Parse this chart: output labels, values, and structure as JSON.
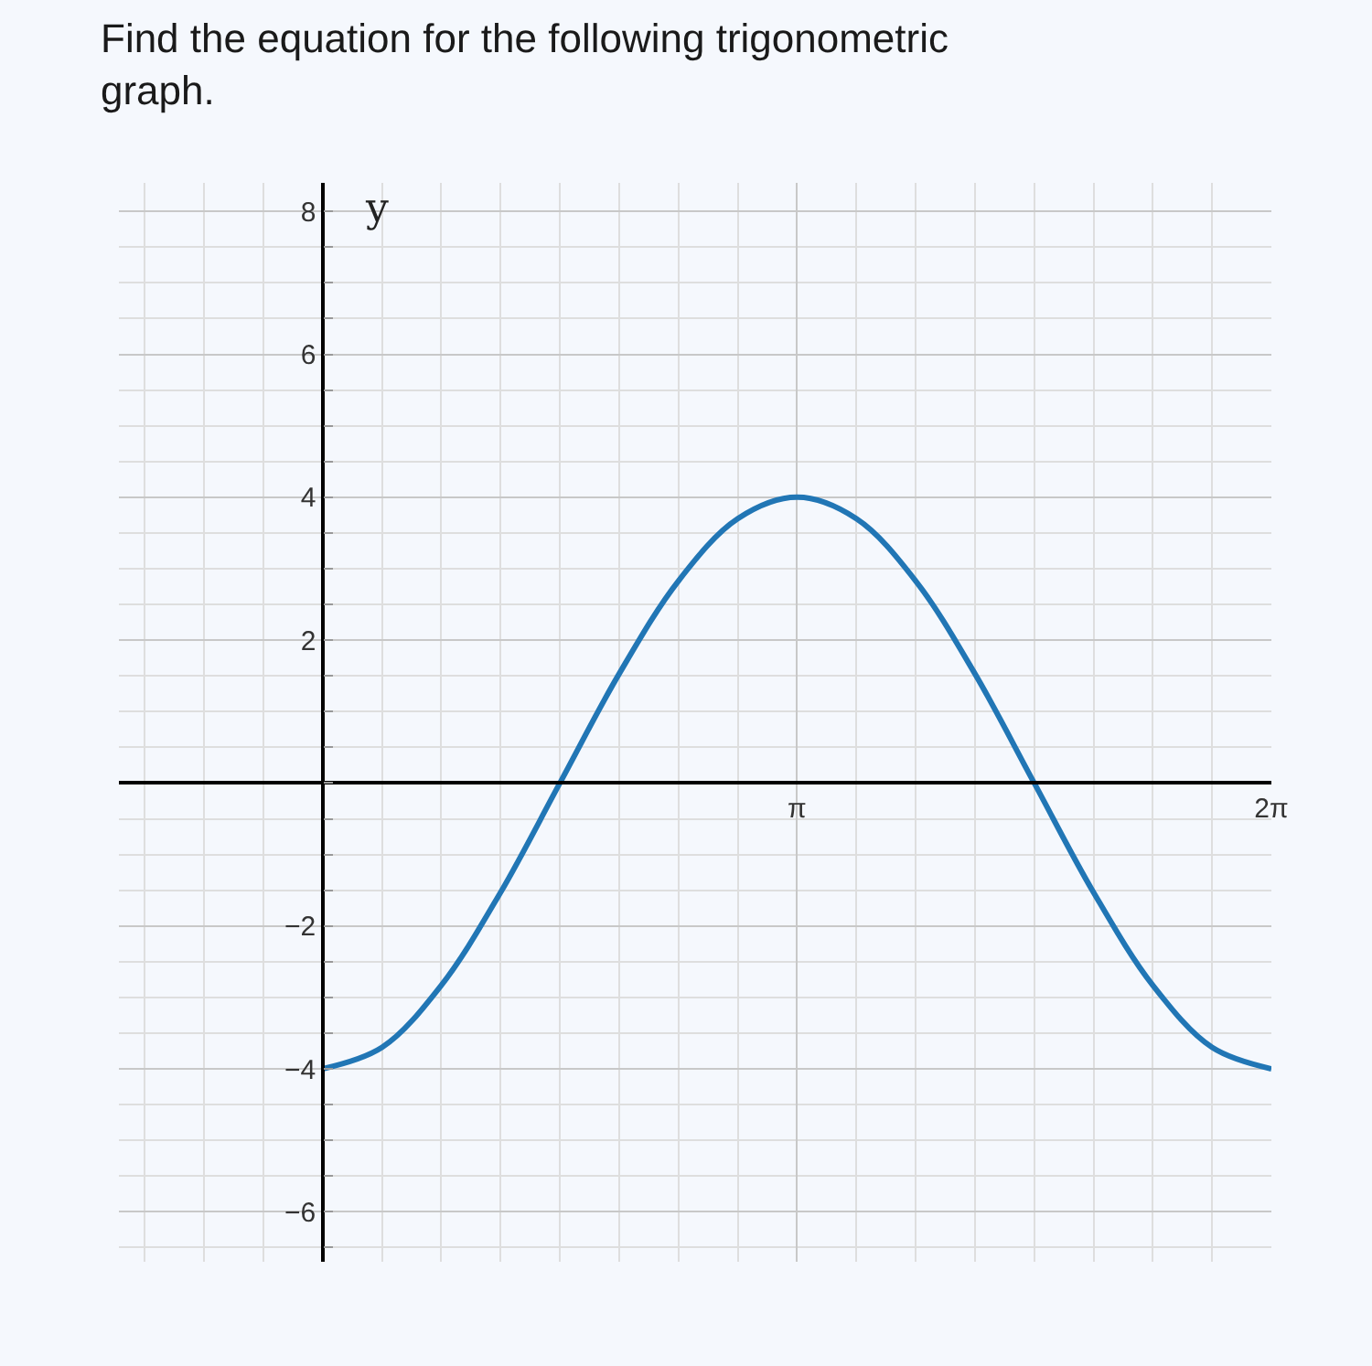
{
  "chart_data": {
    "type": "line",
    "title": "Find the equation for the following trigonometric graph.",
    "ylabel": "y",
    "x": [
      0,
      0.3927,
      0.7854,
      1.1781,
      1.5708,
      1.9635,
      2.3562,
      2.7489,
      3.1416,
      3.5343,
      3.927,
      4.3197,
      4.7124,
      5.1051,
      5.4978,
      5.8905,
      6.2832
    ],
    "series": [
      {
        "color": "#2176b5",
        "values": [
          -4,
          -3.7,
          -2.83,
          -1.53,
          0,
          1.53,
          2.83,
          3.7,
          4,
          3.7,
          2.83,
          1.53,
          0,
          -1.53,
          -2.83,
          -3.7,
          -4
        ]
      }
    ],
    "xlim": [
      -1.35,
      6.2832
    ],
    "ylim": [
      -6.7,
      8.4
    ],
    "xticks": [
      {
        "value": 3.1416,
        "label": "π"
      },
      {
        "value": 6.2832,
        "label": "2π"
      }
    ],
    "yticks": [
      -6,
      -4,
      -2,
      2,
      4,
      6,
      8
    ],
    "grid": true,
    "marker": "none",
    "line_style": "solid"
  }
}
